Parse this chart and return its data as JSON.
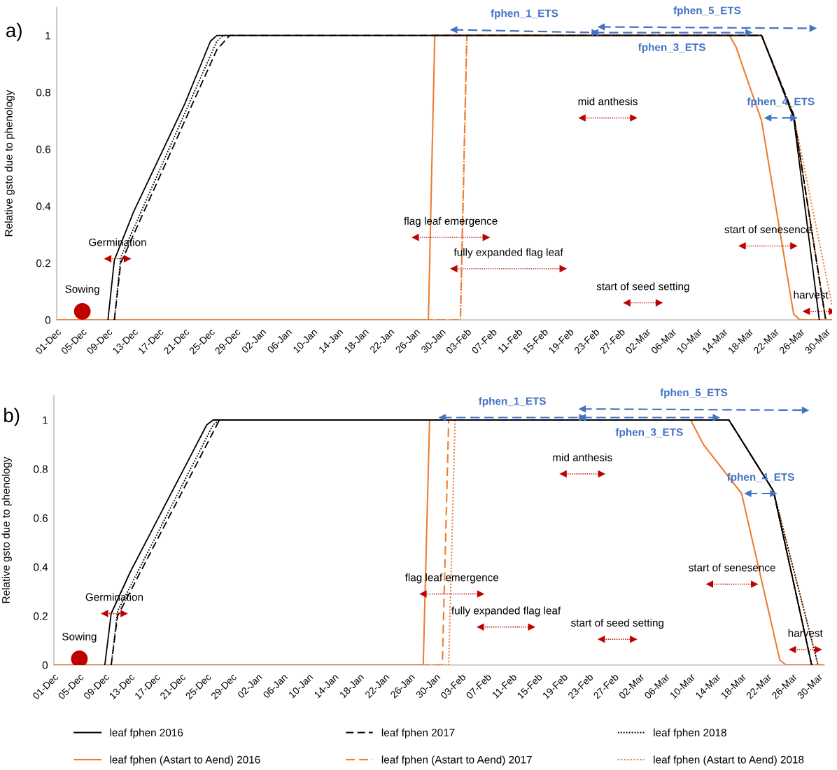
{
  "chart_data": [
    {
      "type": "line",
      "title": "a)",
      "ylabel": "Relative gsto due to phenology",
      "xlim": [
        "2015-12-01",
        "2016-03-31"
      ],
      "ylim": [
        0,
        1.1
      ],
      "yticks": [
        0,
        0.2,
        0.4,
        0.6,
        0.8,
        1
      ],
      "xticks": [
        {
          "value": "2015-12-01",
          "label": "01-Dec"
        },
        {
          "value": "2015-12-05",
          "label": "05-Dec"
        },
        {
          "value": "2015-12-09",
          "label": "09-Dec"
        },
        {
          "value": "2015-12-13",
          "label": "13-Dec"
        },
        {
          "value": "2015-12-17",
          "label": "17-Dec"
        },
        {
          "value": "2015-12-21",
          "label": "21-Dec"
        },
        {
          "value": "2015-12-25",
          "label": "25-Dec"
        },
        {
          "value": "2015-12-29",
          "label": "29-Dec"
        },
        {
          "value": "2016-01-02",
          "label": "02-Jan"
        },
        {
          "value": "2016-01-06",
          "label": "06-Jan"
        },
        {
          "value": "2016-01-10",
          "label": "10-Jan"
        },
        {
          "value": "2016-01-14",
          "label": "14-Jan"
        },
        {
          "value": "2016-01-18",
          "label": "18-Jan"
        },
        {
          "value": "2016-01-22",
          "label": "22-Jan"
        },
        {
          "value": "2016-01-26",
          "label": "26-Jan"
        },
        {
          "value": "2016-01-30",
          "label": "30-Jan"
        },
        {
          "value": "2016-02-03",
          "label": "03-Feb"
        },
        {
          "value": "2016-02-07",
          "label": "07-Feb"
        },
        {
          "value": "2016-02-11",
          "label": "11-Feb"
        },
        {
          "value": "2016-02-15",
          "label": "15-Feb"
        },
        {
          "value": "2016-02-19",
          "label": "19-Feb"
        },
        {
          "value": "2016-02-23",
          "label": "23-Feb"
        },
        {
          "value": "2016-02-27",
          "label": "27-Feb"
        },
        {
          "value": "2016-03-02",
          "label": "02-Mar"
        },
        {
          "value": "2016-03-06",
          "label": "06-Mar"
        },
        {
          "value": "2016-03-10",
          "label": "10-Mar"
        },
        {
          "value": "2016-03-14",
          "label": "14-Mar"
        },
        {
          "value": "2016-03-18",
          "label": "18-Mar"
        },
        {
          "value": "2016-03-22",
          "label": "22-Mar"
        },
        {
          "value": "2016-03-26",
          "label": "26-Mar"
        },
        {
          "value": "2016-03-30",
          "label": "30-Mar"
        }
      ],
      "marker": "none",
      "series": [
        {
          "color": "#ed7d31",
          "line_style": "solid",
          "x": [
            "2015-12-01",
            "2016-01-28",
            "2016-01-29",
            "2016-03-15",
            "2016-03-16",
            "2016-03-20",
            "2016-03-25",
            "2016-03-26",
            "2016-03-31"
          ],
          "values": [
            0,
            0,
            1,
            1,
            0.96,
            0.7,
            0.02,
            0,
            0
          ]
        },
        {
          "color": "#ed7d31",
          "line_style": "dashed",
          "x": [
            "2015-12-01",
            "2016-02-02",
            "2016-02-03",
            "2016-03-20",
            "2016-03-25",
            "2016-03-30",
            "2016-03-31"
          ],
          "values": [
            0,
            0,
            1,
            1,
            0.72,
            0,
            0
          ]
        },
        {
          "color": "#ed7d31",
          "line_style": "dotted",
          "x": [
            "2015-12-01",
            "2016-02-02",
            "2016-02-03",
            "2016-03-20",
            "2016-03-25",
            "2016-03-31"
          ],
          "values": [
            0,
            0,
            1,
            1,
            0.72,
            0.05
          ]
        },
        {
          "color": "#000000",
          "line_style": "solid",
          "x": [
            "2015-12-09",
            "2015-12-10",
            "2015-12-13",
            "2015-12-21",
            "2015-12-25",
            "2015-12-26",
            "2016-03-20",
            "2016-03-25",
            "2016-03-29"
          ],
          "values": [
            0,
            0.21,
            0.38,
            0.76,
            0.98,
            1,
            1,
            0.71,
            0
          ]
        },
        {
          "color": "#000000",
          "line_style": "dashed",
          "x": [
            "2015-12-10",
            "2015-12-11",
            "2015-12-26",
            "2015-12-28",
            "2016-03-20",
            "2016-03-25",
            "2016-03-30"
          ],
          "values": [
            0,
            0.2,
            0.95,
            1,
            1,
            0.72,
            0
          ]
        },
        {
          "color": "#000000",
          "line_style": "dotted",
          "x": [
            "2015-12-10",
            "2015-12-11",
            "2015-12-26",
            "2015-12-27",
            "2016-03-20",
            "2016-03-25",
            "2016-03-30"
          ],
          "values": [
            0,
            0.22,
            0.98,
            1,
            1,
            0.72,
            0
          ]
        },
        {
          "type": "scatter",
          "marker": "circle",
          "color": "#c00000",
          "x": [
            "2015-12-05"
          ],
          "values": [
            0.03
          ]
        },
        {
          "marker": "triangle",
          "color": "#c00000",
          "line_style": "dotted",
          "x": [
            "2015-12-09",
            "2015-12-12"
          ],
          "values": [
            0.215,
            0.215
          ]
        },
        {
          "marker": "triangle",
          "color": "#c00000",
          "line_style": "dotted",
          "x": [
            "2016-01-26",
            "2016-02-06"
          ],
          "values": [
            0.29,
            0.29
          ]
        },
        {
          "marker": "triangle",
          "color": "#c00000",
          "line_style": "dotted",
          "x": [
            "2016-02-01",
            "2016-02-18"
          ],
          "values": [
            0.18,
            0.18
          ]
        },
        {
          "marker": "triangle",
          "color": "#c00000",
          "line_style": "dotted",
          "x": [
            "2016-02-21",
            "2016-02-29"
          ],
          "values": [
            0.71,
            0.71
          ]
        },
        {
          "marker": "triangle",
          "color": "#c00000",
          "line_style": "dotted",
          "x": [
            "2016-02-28",
            "2016-03-04"
          ],
          "values": [
            0.06,
            0.06
          ]
        },
        {
          "marker": "triangle",
          "color": "#c00000",
          "line_style": "dotted",
          "x": [
            "2016-03-17",
            "2016-03-25"
          ],
          "values": [
            0.26,
            0.26
          ]
        },
        {
          "marker": "triangle",
          "color": "#c00000",
          "line_style": "dotted",
          "x": [
            "2016-03-27",
            "2016-03-31"
          ],
          "values": [
            0.03,
            0.03
          ]
        },
        {
          "marker": "triangle",
          "color": "#4472c4",
          "line_style": "dashed",
          "x": [
            "2016-02-01",
            "2016-02-23"
          ],
          "values": [
            1.02,
            1.01
          ]
        },
        {
          "marker": "triangle",
          "color": "#4472c4",
          "line_style": "dashed",
          "x": [
            "2016-02-24",
            "2016-03-28"
          ],
          "values": [
            1.03,
            1.025
          ]
        },
        {
          "marker": "triangle",
          "color": "#4472c4",
          "line_style": "dashed",
          "x": [
            "2016-02-23",
            "2016-03-18"
          ],
          "values": [
            1.01,
            1.01
          ]
        },
        {
          "marker": "triangle",
          "color": "#4472c4",
          "line_style": "dashed",
          "x": [
            "2016-03-21",
            "2016-03-25"
          ],
          "values": [
            0.71,
            0.71
          ]
        }
      ],
      "annotations": [
        "Sowing",
        "Germination",
        "flag leaf emergence",
        "fully expanded flag leaf",
        "mid anthesis",
        "start of seed setting",
        "start of senesence",
        "harvest",
        "fphen_1_ETS",
        "fphen_5_ETS",
        "fphen_3_ETS",
        "fphen_4_ETS"
      ]
    },
    {
      "type": "line",
      "title": "b)",
      "ylabel": "Relative gsto due to phenology",
      "xlim": [
        "2015-12-01",
        "2016-03-31"
      ],
      "ylim": [
        0,
        1.1
      ],
      "yticks": [
        0,
        0.2,
        0.4,
        0.6,
        0.8,
        1
      ],
      "xticks": [
        {
          "value": "2015-12-01",
          "label": "01-Dec"
        },
        {
          "value": "2015-12-05",
          "label": "05-Dec"
        },
        {
          "value": "2015-12-09",
          "label": "09-Dec"
        },
        {
          "value": "2015-12-13",
          "label": "13-Dec"
        },
        {
          "value": "2015-12-17",
          "label": "17-Dec"
        },
        {
          "value": "2015-12-21",
          "label": "21-Dec"
        },
        {
          "value": "2015-12-25",
          "label": "25-Dec"
        },
        {
          "value": "2015-12-29",
          "label": "29-Dec"
        },
        {
          "value": "2016-01-02",
          "label": "02-Jan"
        },
        {
          "value": "2016-01-06",
          "label": "06-Jan"
        },
        {
          "value": "2016-01-10",
          "label": "10-Jan"
        },
        {
          "value": "2016-01-14",
          "label": "14-Jan"
        },
        {
          "value": "2016-01-18",
          "label": "18-Jan"
        },
        {
          "value": "2016-01-22",
          "label": "22-Jan"
        },
        {
          "value": "2016-01-26",
          "label": "26-Jan"
        },
        {
          "value": "2016-01-30",
          "label": "30-Jan"
        },
        {
          "value": "2016-02-03",
          "label": "03-Feb"
        },
        {
          "value": "2016-02-07",
          "label": "07-Feb"
        },
        {
          "value": "2016-02-11",
          "label": "11-Feb"
        },
        {
          "value": "2016-02-15",
          "label": "15-Feb"
        },
        {
          "value": "2016-02-19",
          "label": "19-Feb"
        },
        {
          "value": "2016-02-23",
          "label": "23-Feb"
        },
        {
          "value": "2016-02-27",
          "label": "27-Feb"
        },
        {
          "value": "2016-03-02",
          "label": "02-Mar"
        },
        {
          "value": "2016-03-06",
          "label": "06-Mar"
        },
        {
          "value": "2016-03-10",
          "label": "10-Mar"
        },
        {
          "value": "2016-03-14",
          "label": "14-Mar"
        },
        {
          "value": "2016-03-18",
          "label": "18-Mar"
        },
        {
          "value": "2016-03-22",
          "label": "22-Mar"
        },
        {
          "value": "2016-03-26",
          "label": "26-Mar"
        },
        {
          "value": "2016-03-30",
          "label": "30-Mar"
        }
      ],
      "marker": "none",
      "legend": "bottom",
      "series": [
        {
          "name": "leaf fphen (Astart to Aend) 2016",
          "color": "#ed7d31",
          "line_style": "solid",
          "x": [
            "2015-12-01",
            "2016-01-28",
            "2016-01-29",
            "2016-03-10",
            "2016-03-12",
            "2016-03-18",
            "2016-03-24",
            "2016-03-25",
            "2016-03-31"
          ],
          "values": [
            0,
            0,
            1,
            1,
            0.9,
            0.7,
            0.02,
            0,
            0
          ]
        },
        {
          "name": "leaf fphen (Astart to Aend) 2017",
          "color": "#ed7d31",
          "line_style": "dashed",
          "x": [
            "2015-12-01",
            "2016-01-31",
            "2016-02-01",
            "2016-03-16",
            "2016-03-23",
            "2016-03-29",
            "2016-03-31"
          ],
          "values": [
            0,
            0,
            1,
            1,
            0.71,
            0,
            0
          ]
        },
        {
          "name": "leaf fphen (Astart to Aend) 2018",
          "color": "#ed7d31",
          "line_style": "dotted",
          "x": [
            "2015-12-01",
            "2016-02-01",
            "2016-02-02",
            "2016-03-16",
            "2016-03-23",
            "2016-03-30",
            "2016-03-31"
          ],
          "values": [
            0,
            0,
            1,
            1,
            0.71,
            0,
            0
          ]
        },
        {
          "name": "leaf fphen 2016",
          "color": "#000000",
          "line_style": "solid",
          "x": [
            "2015-12-09",
            "2015-12-10",
            "2015-12-13",
            "2015-12-25",
            "2015-12-26",
            "2016-03-16",
            "2016-03-23",
            "2016-03-29"
          ],
          "values": [
            0,
            0.21,
            0.38,
            0.98,
            1,
            1,
            0.71,
            0
          ]
        },
        {
          "name": "leaf fphen 2017",
          "color": "#000000",
          "line_style": "dashed",
          "x": [
            "2015-12-10",
            "2015-12-11",
            "2015-12-26",
            "2015-12-27",
            "2016-03-16",
            "2016-03-23",
            "2016-03-29"
          ],
          "values": [
            0,
            0.2,
            0.95,
            1,
            1,
            0.71,
            0
          ]
        },
        {
          "name": "leaf fphen 2018",
          "color": "#000000",
          "line_style": "dotted",
          "x": [
            "2015-12-10",
            "2015-12-11",
            "2015-12-26",
            "2015-12-27",
            "2016-03-16",
            "2016-03-23",
            "2016-03-30"
          ],
          "values": [
            0,
            0.22,
            0.98,
            1,
            1,
            0.71,
            0
          ]
        },
        {
          "type": "scatter",
          "marker": "circle",
          "color": "#c00000",
          "x": [
            "2015-12-05"
          ],
          "values": [
            0.025
          ]
        },
        {
          "marker": "triangle",
          "color": "#c00000",
          "line_style": "dotted",
          "x": [
            "2015-12-09",
            "2015-12-12"
          ],
          "values": [
            0.21,
            0.21
          ]
        },
        {
          "marker": "triangle",
          "color": "#c00000",
          "line_style": "dotted",
          "x": [
            "2016-01-28",
            "2016-02-06"
          ],
          "values": [
            0.29,
            0.29
          ]
        },
        {
          "marker": "triangle",
          "color": "#c00000",
          "line_style": "dotted",
          "x": [
            "2016-02-06",
            "2016-02-14"
          ],
          "values": [
            0.155,
            0.155
          ]
        },
        {
          "marker": "triangle",
          "color": "#c00000",
          "line_style": "dotted",
          "x": [
            "2016-02-19",
            "2016-02-25"
          ],
          "values": [
            0.78,
            0.78
          ]
        },
        {
          "marker": "triangle",
          "color": "#c00000",
          "line_style": "dotted",
          "x": [
            "2016-02-25",
            "2016-03-01"
          ],
          "values": [
            0.105,
            0.105
          ]
        },
        {
          "marker": "triangle",
          "color": "#c00000",
          "line_style": "dotted",
          "x": [
            "2016-03-13",
            "2016-03-20"
          ],
          "values": [
            0.33,
            0.33
          ]
        },
        {
          "marker": "triangle",
          "color": "#c00000",
          "line_style": "dotted",
          "x": [
            "2016-03-26",
            "2016-03-30"
          ],
          "values": [
            0.063,
            0.063
          ]
        },
        {
          "marker": "triangle",
          "color": "#4472c4",
          "line_style": "dashed",
          "x": [
            "2016-01-31",
            "2016-02-22"
          ],
          "values": [
            1.01,
            1.01
          ]
        },
        {
          "marker": "triangle",
          "color": "#4472c4",
          "line_style": "dashed",
          "x": [
            "2016-02-22",
            "2016-03-28"
          ],
          "values": [
            1.045,
            1.04
          ]
        },
        {
          "marker": "triangle",
          "color": "#4472c4",
          "line_style": "dashed",
          "x": [
            "2016-02-22",
            "2016-03-14"
          ],
          "values": [
            1.01,
            1.01
          ]
        },
        {
          "marker": "triangle",
          "color": "#4472c4",
          "line_style": "dashed",
          "x": [
            "2016-03-19",
            "2016-03-23"
          ],
          "values": [
            0.7,
            0.7
          ]
        }
      ],
      "annotations": [
        "Sowing",
        "Germination",
        "flag leaf emergence",
        "fully expanded flag leaf",
        "mid anthesis",
        "start of seed setting",
        "start of senesence",
        "harvest",
        "fphen_1_ETS",
        "fphen_5_ETS",
        "fphen_3_ETS",
        "fphen_4_ETS"
      ]
    }
  ]
}
